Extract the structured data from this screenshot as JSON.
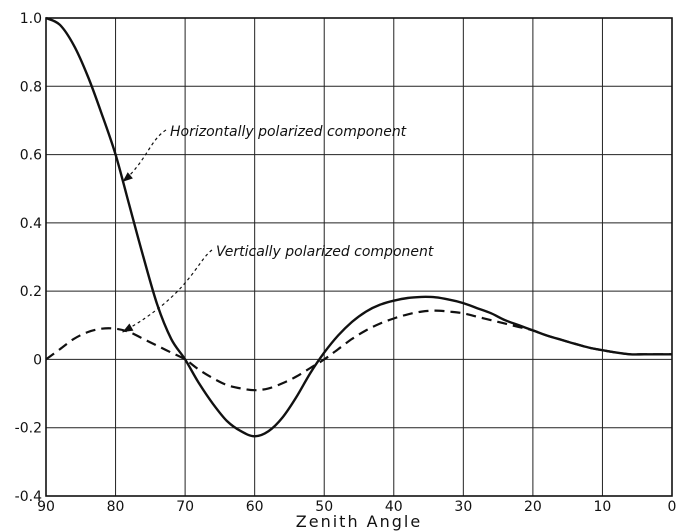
{
  "chart_data": {
    "type": "line",
    "xlabel": "Zenith Angle",
    "ylabel": "",
    "xlim": [
      90,
      0
    ],
    "ylim": [
      -0.4,
      1.0
    ],
    "x_ticks": [
      "90",
      "80",
      "70",
      "60",
      "50",
      "40",
      "30",
      "20",
      "10",
      "0"
    ],
    "y_ticks": [
      "1.0",
      "0.8",
      "0.6",
      "0.4",
      "0.2",
      "0",
      "-0.2",
      "-0.4"
    ],
    "grid": true,
    "series": [
      {
        "name": "Horizontally polarized component",
        "style": "solid",
        "x": [
          90,
          88,
          86,
          84,
          82,
          80,
          78,
          76,
          74,
          72,
          70,
          68,
          66,
          64,
          62,
          60,
          58,
          56,
          54,
          52,
          50,
          48,
          46,
          44,
          42,
          40,
          38,
          36,
          34,
          32,
          30,
          28,
          26,
          24,
          22,
          20,
          18,
          16,
          14,
          12,
          10,
          8,
          6,
          4,
          2,
          0
        ],
        "y": [
          1.0,
          0.98,
          0.92,
          0.83,
          0.72,
          0.6,
          0.45,
          0.3,
          0.16,
          0.06,
          0.0,
          -0.07,
          -0.13,
          -0.18,
          -0.21,
          -0.225,
          -0.21,
          -0.17,
          -0.11,
          -0.04,
          0.02,
          0.07,
          0.11,
          0.14,
          0.16,
          0.172,
          0.18,
          0.183,
          0.182,
          0.175,
          0.165,
          0.15,
          0.135,
          0.115,
          0.1,
          0.085,
          0.07,
          0.058,
          0.046,
          0.035,
          0.027,
          0.02,
          0.015,
          0.015,
          0.015,
          0.015
        ]
      },
      {
        "name": "Vertically polarized component",
        "style": "dashed",
        "x": [
          90,
          88,
          86,
          84,
          82,
          80,
          78,
          76,
          74,
          72,
          70,
          68,
          66,
          64,
          62,
          60,
          58,
          56,
          54,
          52,
          50,
          48,
          46,
          44,
          42,
          40,
          38,
          36,
          34,
          32,
          30,
          28,
          26,
          24,
          22,
          20,
          18,
          16,
          14,
          12,
          10,
          8,
          6,
          4,
          2,
          0
        ],
        "y": [
          0.0,
          0.03,
          0.06,
          0.08,
          0.09,
          0.09,
          0.08,
          0.06,
          0.04,
          0.02,
          0.0,
          -0.03,
          -0.055,
          -0.075,
          -0.085,
          -0.09,
          -0.085,
          -0.07,
          -0.05,
          -0.025,
          0.0,
          0.03,
          0.06,
          0.085,
          0.105,
          0.12,
          0.132,
          0.14,
          0.143,
          0.14,
          0.135,
          0.125,
          0.115,
          0.105,
          0.095,
          0.085,
          0.07,
          0.058,
          0.046,
          0.035,
          0.027,
          0.02,
          0.015,
          0.015,
          0.015,
          0.015
        ]
      }
    ],
    "annotations": [
      {
        "text": "Horizontally polarized component",
        "target_x": 79,
        "target_y": 0.52
      },
      {
        "text": "Vertically polarized component",
        "target_x": 79,
        "target_y": 0.08
      }
    ]
  }
}
